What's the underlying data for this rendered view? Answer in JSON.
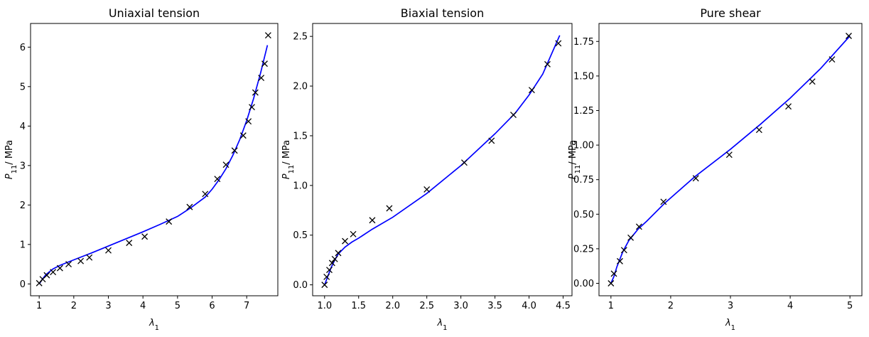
{
  "chart_data": [
    {
      "type": "line",
      "title": "Uniaxial tension",
      "xlabel": "λ1",
      "ylabel": "P11/ MPa",
      "xlim": [
        0.75,
        7.9
      ],
      "ylim": [
        -0.3,
        6.6
      ],
      "xticks": [
        1,
        2,
        3,
        4,
        5,
        6,
        7
      ],
      "xtick_labels": [
        "1",
        "2",
        "3",
        "4",
        "5",
        "6",
        "7"
      ],
      "yticks": [
        0,
        1,
        2,
        3,
        4,
        5,
        6
      ],
      "ytick_labels": [
        "0",
        "1",
        "2",
        "3",
        "4",
        "5",
        "6"
      ],
      "series": [
        {
          "role": "model",
          "style": "line",
          "color": "#0000ff",
          "x": [
            1.0,
            1.1,
            1.2,
            1.4,
            1.6,
            1.8,
            2.0,
            2.5,
            3.0,
            3.5,
            4.0,
            4.5,
            5.0,
            5.4,
            5.8,
            6.0,
            6.2,
            6.4,
            6.6,
            6.8,
            7.0,
            7.2,
            7.4,
            7.6
          ],
          "y": [
            0.0,
            0.13,
            0.24,
            0.38,
            0.47,
            0.54,
            0.61,
            0.78,
            0.96,
            1.14,
            1.32,
            1.51,
            1.71,
            1.94,
            2.2,
            2.4,
            2.64,
            2.92,
            3.26,
            3.66,
            4.14,
            4.7,
            5.34,
            6.05
          ]
        },
        {
          "role": "experiment",
          "style": "x-markers",
          "color": "#000000",
          "x": [
            1.0,
            1.1,
            1.22,
            1.4,
            1.6,
            1.85,
            2.2,
            2.45,
            3.0,
            3.6,
            4.05,
            4.75,
            5.35,
            5.8,
            6.15,
            6.4,
            6.65,
            6.9,
            7.05,
            7.15,
            7.25,
            7.42,
            7.52,
            7.62
          ],
          "y": [
            0.02,
            0.12,
            0.22,
            0.3,
            0.4,
            0.5,
            0.58,
            0.67,
            0.85,
            1.04,
            1.2,
            1.58,
            1.95,
            2.28,
            2.66,
            3.02,
            3.38,
            3.76,
            4.12,
            4.48,
            4.85,
            5.22,
            5.58,
            6.3
          ]
        }
      ]
    },
    {
      "type": "line",
      "title": "Biaxial tension",
      "xlabel": "λ1",
      "ylabel": "P11/ MPa",
      "xlim": [
        0.825,
        4.63
      ],
      "ylim": [
        -0.11,
        2.63
      ],
      "xticks": [
        1.0,
        1.5,
        2.0,
        2.5,
        3.0,
        3.5,
        4.0,
        4.5
      ],
      "xtick_labels": [
        "1.0",
        "1.5",
        "2.0",
        "2.5",
        "3.0",
        "3.5",
        "4.0",
        "4.5"
      ],
      "yticks": [
        0.0,
        0.5,
        1.0,
        1.5,
        2.0,
        2.5
      ],
      "ytick_labels": [
        "0.0",
        "0.5",
        "1.0",
        "1.5",
        "2.0",
        "2.5"
      ],
      "series": [
        {
          "role": "model",
          "style": "line",
          "color": "#0000ff",
          "x": [
            1.0,
            1.05,
            1.1,
            1.15,
            1.2,
            1.3,
            1.4,
            1.5,
            1.7,
            2.0,
            2.5,
            3.0,
            3.5,
            3.8,
            4.0,
            4.2,
            4.45
          ],
          "y": [
            0.0,
            0.09,
            0.18,
            0.25,
            0.31,
            0.38,
            0.43,
            0.47,
            0.56,
            0.68,
            0.92,
            1.2,
            1.52,
            1.73,
            1.91,
            2.12,
            2.51
          ]
        },
        {
          "role": "experiment",
          "style": "x-markers",
          "color": "#000000",
          "x": [
            1.0,
            1.03,
            1.07,
            1.11,
            1.15,
            1.2,
            1.3,
            1.42,
            1.7,
            1.95,
            2.5,
            3.05,
            3.45,
            3.77,
            4.04,
            4.27,
            4.43
          ],
          "y": [
            0.0,
            0.08,
            0.15,
            0.22,
            0.26,
            0.32,
            0.44,
            0.51,
            0.65,
            0.77,
            0.96,
            1.23,
            1.45,
            1.71,
            1.96,
            2.22,
            2.43
          ]
        }
      ]
    },
    {
      "type": "line",
      "title": "Pure shear",
      "xlabel": "λ1",
      "ylabel": "P11/ MPa",
      "xlim": [
        0.8,
        5.2
      ],
      "ylim": [
        -0.09,
        1.88
      ],
      "xticks": [
        1,
        2,
        3,
        4,
        5
      ],
      "xtick_labels": [
        "1",
        "2",
        "3",
        "4",
        "5"
      ],
      "yticks": [
        0.0,
        0.25,
        0.5,
        0.75,
        1.0,
        1.25,
        1.5,
        1.75
      ],
      "ytick_labels": [
        "0.00",
        "0.25",
        "0.50",
        "0.75",
        "1.00",
        "1.25",
        "1.50",
        "1.75"
      ],
      "series": [
        {
          "role": "model",
          "style": "line",
          "color": "#0000ff",
          "x": [
            1.0,
            1.05,
            1.1,
            1.2,
            1.3,
            1.45,
            1.6,
            1.9,
            2.4,
            3.0,
            3.5,
            4.0,
            4.5,
            5.0
          ],
          "y": [
            0.0,
            0.05,
            0.12,
            0.23,
            0.31,
            0.39,
            0.45,
            0.58,
            0.77,
            0.97,
            1.15,
            1.34,
            1.55,
            1.79
          ]
        },
        {
          "role": "experiment",
          "style": "x-markers",
          "color": "#000000",
          "x": [
            1.0,
            1.05,
            1.15,
            1.22,
            1.33,
            1.47,
            1.88,
            2.42,
            2.98,
            3.48,
            3.97,
            4.37,
            4.7,
            4.98
          ],
          "y": [
            0.0,
            0.07,
            0.16,
            0.24,
            0.33,
            0.41,
            0.59,
            0.76,
            0.93,
            1.11,
            1.28,
            1.46,
            1.62,
            1.79
          ]
        }
      ]
    }
  ]
}
